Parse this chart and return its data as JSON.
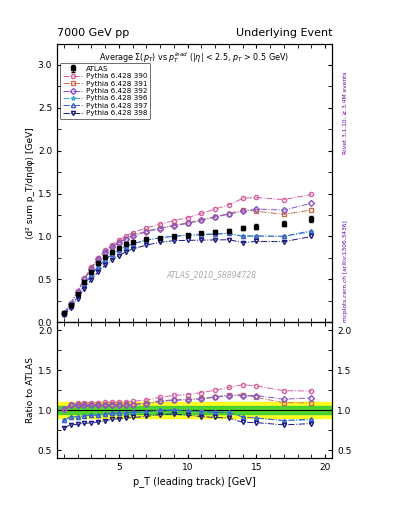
{
  "title_left": "7000 GeV pp",
  "title_right": "Underlying Event",
  "ylabel_main": "⟨d² sum p_T/dηdφ⟩ [GeV]",
  "ylabel_ratio": "Ratio to ATLAS",
  "xlabel": "p_T (leading track) [GeV]",
  "right_label": "mcplots.cern.ch [arXiv:1306.3436]",
  "right_label2": "Rivet 3.1.10, ≥ 3.4M events",
  "watermark": "ATLAS_2010_S8894728",
  "ylim_main": [
    0.0,
    3.25
  ],
  "ylim_ratio": [
    0.4,
    2.1
  ],
  "xlim": [
    0.5,
    20.5
  ],
  "green_band": 0.05,
  "yellow_band": 0.1,
  "atlas_x": [
    1.0,
    1.5,
    2.0,
    2.5,
    3.0,
    3.5,
    4.0,
    4.5,
    5.0,
    5.5,
    6.0,
    7.0,
    8.0,
    9.0,
    10.0,
    11.0,
    12.0,
    13.0,
    14.0,
    15.0,
    17.0,
    19.0
  ],
  "atlas_y": [
    0.105,
    0.205,
    0.335,
    0.47,
    0.59,
    0.69,
    0.765,
    0.82,
    0.87,
    0.908,
    0.94,
    0.975,
    0.985,
    1.0,
    1.02,
    1.04,
    1.055,
    1.065,
    1.095,
    1.115,
    1.15,
    1.2
  ],
  "atlas_yerr": [
    0.006,
    0.009,
    0.011,
    0.013,
    0.013,
    0.013,
    0.012,
    0.012,
    0.012,
    0.012,
    0.012,
    0.012,
    0.012,
    0.012,
    0.013,
    0.015,
    0.018,
    0.02,
    0.022,
    0.025,
    0.03,
    0.035
  ],
  "series": [
    {
      "label": "Pythia 6.428 390",
      "color": "#d45fa0",
      "marker": "o",
      "linestyle": "-.",
      "x": [
        1.0,
        1.5,
        2.0,
        2.5,
        3.0,
        3.5,
        4.0,
        4.5,
        5.0,
        5.5,
        6.0,
        7.0,
        8.0,
        9.0,
        10.0,
        11.0,
        12.0,
        13.0,
        14.0,
        15.0,
        17.0,
        19.0
      ],
      "y": [
        0.107,
        0.22,
        0.365,
        0.515,
        0.645,
        0.755,
        0.84,
        0.905,
        0.96,
        1.005,
        1.045,
        1.1,
        1.145,
        1.185,
        1.22,
        1.27,
        1.32,
        1.37,
        1.445,
        1.455,
        1.43,
        1.49
      ]
    },
    {
      "label": "Pythia 6.428 391",
      "color": "#c87050",
      "marker": "s",
      "linestyle": "-.",
      "x": [
        1.0,
        1.5,
        2.0,
        2.5,
        3.0,
        3.5,
        4.0,
        4.5,
        5.0,
        5.5,
        6.0,
        7.0,
        8.0,
        9.0,
        10.0,
        11.0,
        12.0,
        13.0,
        14.0,
        15.0,
        17.0,
        19.0
      ],
      "y": [
        0.106,
        0.218,
        0.358,
        0.505,
        0.632,
        0.74,
        0.822,
        0.885,
        0.935,
        0.975,
        1.012,
        1.062,
        1.1,
        1.132,
        1.158,
        1.195,
        1.232,
        1.268,
        1.31,
        1.295,
        1.258,
        1.31
      ]
    },
    {
      "label": "Pythia 6.428 392",
      "color": "#8855cc",
      "marker": "D",
      "linestyle": "-.",
      "x": [
        1.0,
        1.5,
        2.0,
        2.5,
        3.0,
        3.5,
        4.0,
        4.5,
        5.0,
        5.5,
        6.0,
        7.0,
        8.0,
        9.0,
        10.0,
        11.0,
        12.0,
        13.0,
        14.0,
        15.0,
        17.0,
        19.0
      ],
      "y": [
        0.106,
        0.218,
        0.355,
        0.5,
        0.626,
        0.733,
        0.815,
        0.878,
        0.928,
        0.969,
        1.005,
        1.055,
        1.093,
        1.125,
        1.152,
        1.188,
        1.225,
        1.26,
        1.295,
        1.32,
        1.308,
        1.388
      ]
    },
    {
      "label": "Pythia 6.428 396",
      "color": "#40a8c8",
      "marker": "*",
      "linestyle": "-.",
      "x": [
        1.0,
        1.5,
        2.0,
        2.5,
        3.0,
        3.5,
        4.0,
        4.5,
        5.0,
        5.5,
        6.0,
        7.0,
        8.0,
        9.0,
        10.0,
        11.0,
        12.0,
        13.0,
        14.0,
        15.0,
        17.0,
        19.0
      ],
      "y": [
        0.092,
        0.188,
        0.308,
        0.438,
        0.552,
        0.648,
        0.725,
        0.79,
        0.842,
        0.882,
        0.915,
        0.958,
        0.985,
        1.003,
        1.015,
        1.025,
        1.032,
        1.038,
        1.002,
        1.008,
        1.002,
        1.055
      ]
    },
    {
      "label": "Pythia 6.428 397",
      "color": "#4060c8",
      "marker": "^",
      "linestyle": "-.",
      "x": [
        1.0,
        1.5,
        2.0,
        2.5,
        3.0,
        3.5,
        4.0,
        4.5,
        5.0,
        5.5,
        6.0,
        7.0,
        8.0,
        9.0,
        10.0,
        11.0,
        12.0,
        13.0,
        14.0,
        15.0,
        17.0,
        19.0
      ],
      "y": [
        0.092,
        0.188,
        0.308,
        0.438,
        0.552,
        0.65,
        0.728,
        0.792,
        0.842,
        0.882,
        0.915,
        0.958,
        0.985,
        1.003,
        1.015,
        1.02,
        1.028,
        1.035,
        1.005,
        1.005,
        1.002,
        1.068
      ]
    },
    {
      "label": "Pythia 6.428 398",
      "color": "#1a1a80",
      "marker": "v",
      "linestyle": "-.",
      "x": [
        1.0,
        1.5,
        2.0,
        2.5,
        3.0,
        3.5,
        4.0,
        4.5,
        5.0,
        5.5,
        6.0,
        7.0,
        8.0,
        9.0,
        10.0,
        11.0,
        12.0,
        13.0,
        14.0,
        15.0,
        17.0,
        19.0
      ],
      "y": [
        0.082,
        0.168,
        0.276,
        0.393,
        0.498,
        0.59,
        0.665,
        0.728,
        0.778,
        0.82,
        0.855,
        0.9,
        0.932,
        0.952,
        0.955,
        0.958,
        0.96,
        0.962,
        0.93,
        0.942,
        0.94,
        1.0
      ]
    }
  ]
}
